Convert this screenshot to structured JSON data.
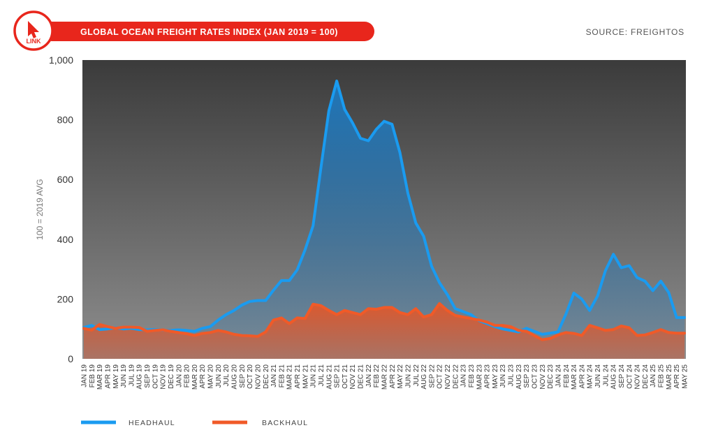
{
  "header": {
    "link_label": "LINK",
    "title": "GLOBAL OCEAN FREIGHT RATES INDEX (JAN 2019 = 100)",
    "source": "SOURCE: FREIGHTOS"
  },
  "colors": {
    "headhaul": "#1a9bf0",
    "backhaul": "#f05a28",
    "accent_red": "#e8261c"
  },
  "chart_data": {
    "type": "line",
    "title": "GLOBAL OCEAN FREIGHT RATES INDEX (JAN 2019 = 100)",
    "xlabel": "",
    "ylabel": "100 = 2019 AVG",
    "ylim": [
      0,
      1000
    ],
    "yticks": [
      0,
      200,
      400,
      600,
      800,
      1000
    ],
    "ytick_labels": [
      "0",
      "200",
      "400",
      "600",
      "800",
      "1,000"
    ],
    "grid": false,
    "legend": "bottom-left",
    "categories": [
      "JAN 19",
      "FEB 19",
      "MAR 19",
      "APR 19",
      "MAY 19",
      "JUN 19",
      "JUL 19",
      "AUG 19",
      "SEP 19",
      "OCT 19",
      "NOV 19",
      "DEC 19",
      "JAN 20",
      "FEB 20",
      "MAR 20",
      "APR 20",
      "MAY 20",
      "JUN 20",
      "JUL 20",
      "AUG 20",
      "SEP 20",
      "OCT 20",
      "NOV 20",
      "DEC 20",
      "JAN 21",
      "FEB 21",
      "MAR 21",
      "APR 21",
      "MAY 21",
      "JUN 21",
      "JUL 21",
      "AUG 21",
      "SEP 21",
      "OCT 21",
      "NOV 21",
      "DEC 21",
      "JAN 22",
      "FEB 22",
      "MAR 22",
      "APR 22",
      "MAY 22",
      "JUN 22",
      "JUL 22",
      "AUG 22",
      "SEP 22",
      "OCT 22",
      "NOV 22",
      "DEC 22",
      "JAN 23",
      "FEB 23",
      "MAR 23",
      "APR 23",
      "MAY 23",
      "JUN 23",
      "JUL 23",
      "AUG 23",
      "SEP 23",
      "OCT 23",
      "NOV 23",
      "DEC 23",
      "JAN 24",
      "FEB 24",
      "MAR 24",
      "APR 24",
      "MAY 24",
      "JUN 24",
      "JUL 24",
      "AUG 24",
      "SEP 24",
      "OCT 24",
      "NOV 24",
      "DEC 24",
      "JAN 25",
      "FEB 25",
      "MAR 25",
      "APR 25",
      "MAY 25"
    ],
    "series": [
      {
        "name": "HEADHAUL",
        "color": "#1a9bf0",
        "values": [
          105,
          112,
          98,
          100,
          104,
          100,
          102,
          98,
          97,
          98,
          96,
          95,
          97,
          95,
          92,
          102,
          108,
          130,
          148,
          162,
          180,
          192,
          195,
          195,
          230,
          262,
          262,
          298,
          365,
          445,
          640,
          830,
          930,
          835,
          790,
          738,
          730,
          768,
          795,
          785,
          690,
          555,
          455,
          410,
          310,
          255,
          215,
          168,
          158,
          148,
          128,
          118,
          108,
          100,
          95,
          90,
          102,
          92,
          82,
          86,
          90,
          150,
          220,
          200,
          162,
          210,
          295,
          350,
          305,
          312,
          272,
          260,
          228,
          260,
          222,
          138,
          138
        ],
        "point_labels": []
      },
      {
        "name": "BACKHAUL",
        "color": "#f05a28",
        "values": [
          102,
          96,
          115,
          108,
          102,
          106,
          106,
          105,
          92,
          95,
          97,
          92,
          88,
          84,
          78,
          85,
          88,
          95,
          90,
          82,
          78,
          77,
          75,
          90,
          130,
          137,
          118,
          137,
          135,
          183,
          178,
          162,
          148,
          162,
          155,
          148,
          168,
          166,
          172,
          172,
          155,
          148,
          168,
          140,
          148,
          185,
          162,
          145,
          140,
          135,
          130,
          123,
          112,
          112,
          108,
          95,
          92,
          78,
          64,
          68,
          80,
          88,
          85,
          78,
          112,
          104,
          95,
          98,
          110,
          104,
          78,
          80,
          88,
          98,
          88,
          86,
          86
        ],
        "point_labels": []
      }
    ]
  },
  "legend": {
    "items": [
      {
        "label": "HEADHAUL",
        "color": "#1a9bf0"
      },
      {
        "label": "BACKHAUL",
        "color": "#f05a28"
      }
    ]
  }
}
